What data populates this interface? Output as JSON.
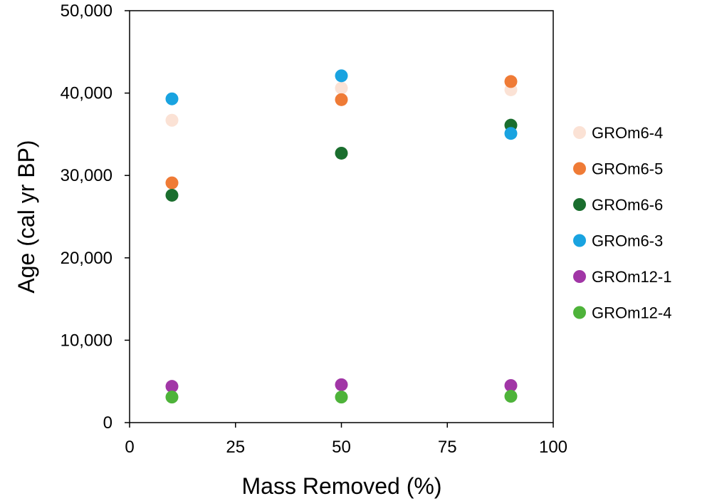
{
  "chart_data": {
    "type": "scatter",
    "xlabel": "Mass Removed (%)",
    "ylabel": "Age (cal yr BP)",
    "xlim": [
      0,
      100
    ],
    "ylim": [
      0,
      50000
    ],
    "x_ticks": [
      0,
      25,
      50,
      75,
      100
    ],
    "y_ticks": [
      0,
      10000,
      20000,
      30000,
      40000,
      50000
    ],
    "x_tick_labels": [
      "0",
      "25",
      "50",
      "75",
      "100"
    ],
    "y_tick_labels": [
      "0",
      "10,000",
      "20,000",
      "30,000",
      "40,000",
      "50,000"
    ],
    "grid": false,
    "legend_position": "right",
    "series": [
      {
        "name": "GROm6-4",
        "color": "#fbe2d5",
        "points": [
          {
            "x": 10,
            "y": 36700
          },
          {
            "x": 50,
            "y": 40600
          },
          {
            "x": 90,
            "y": 40400
          }
        ]
      },
      {
        "name": "GROm6-5",
        "color": "#ef7b36",
        "points": [
          {
            "x": 10,
            "y": 29100
          },
          {
            "x": 50,
            "y": 39200
          },
          {
            "x": 90,
            "y": 41400
          }
        ]
      },
      {
        "name": "GROm6-6",
        "color": "#1a6e2e",
        "points": [
          {
            "x": 10,
            "y": 27600
          },
          {
            "x": 50,
            "y": 32700
          },
          {
            "x": 90,
            "y": 36100
          }
        ]
      },
      {
        "name": "GROm6-3",
        "color": "#19a3e0",
        "points": [
          {
            "x": 10,
            "y": 39300
          },
          {
            "x": 50,
            "y": 42100
          },
          {
            "x": 90,
            "y": 35100
          }
        ]
      },
      {
        "name": "GROm12-1",
        "color": "#a136a6",
        "points": [
          {
            "x": 10,
            "y": 4400
          },
          {
            "x": 50,
            "y": 4600
          },
          {
            "x": 90,
            "y": 4500
          }
        ]
      },
      {
        "name": "GROm12-4",
        "color": "#4eb33a",
        "points": [
          {
            "x": 10,
            "y": 3100
          },
          {
            "x": 50,
            "y": 3100
          },
          {
            "x": 90,
            "y": 3200
          }
        ]
      }
    ]
  }
}
